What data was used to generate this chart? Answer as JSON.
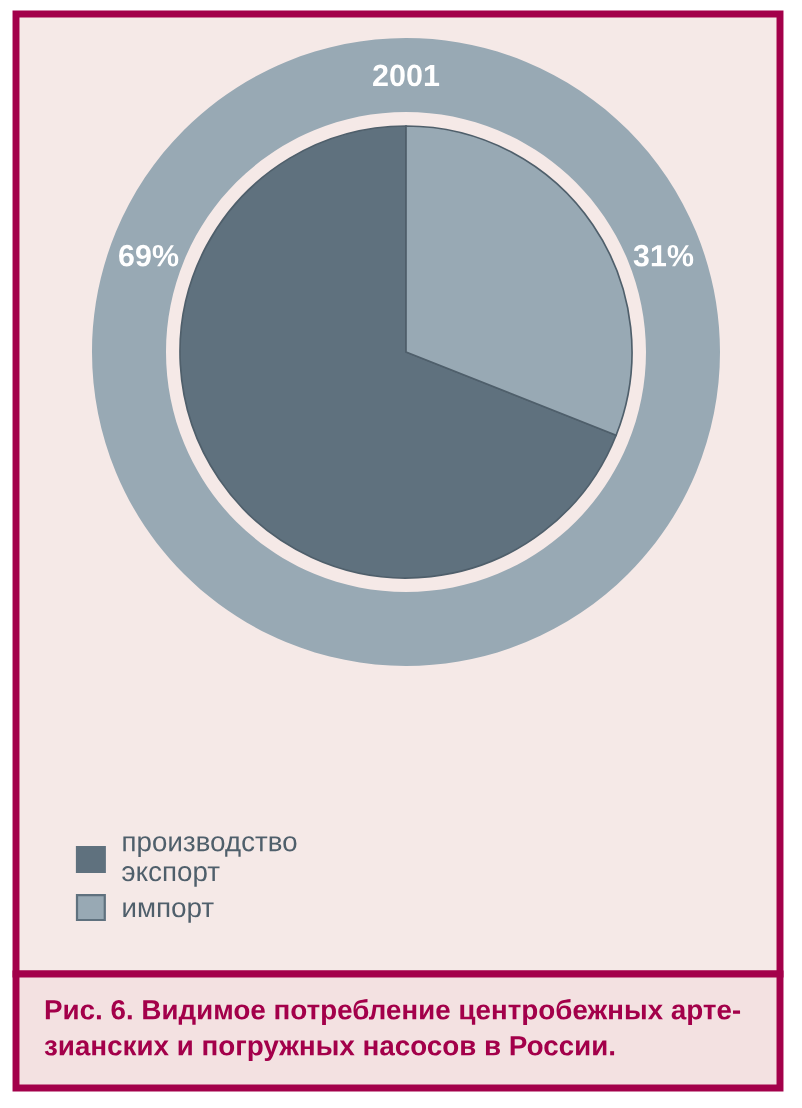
{
  "chart_data": {
    "type": "pie",
    "title": "2001",
    "categories": [
      "производство\nэкспорт",
      "импорт"
    ],
    "values": [
      69,
      31
    ],
    "colors": [
      "#5f717e",
      "#98a9b4"
    ],
    "value_labels": [
      "69%",
      "31%"
    ],
    "legend": "bottom left",
    "annotations": [
      "Рис. 6. Видимое потребление центробежных арте-\nзианских и погружных насосов в России."
    ]
  }
}
